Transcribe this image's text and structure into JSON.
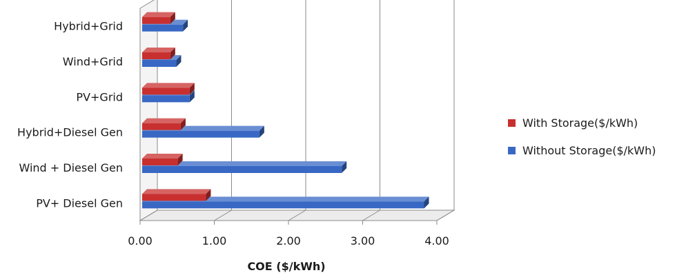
{
  "chart_data": {
    "type": "bar",
    "orientation": "horizontal",
    "categories": [
      "PV+ Diesel Gen",
      "Wind + Diesel Gen",
      "Hybrid+Diesel Gen",
      "PV+Grid",
      "Wind+Grid",
      "Hybrid+Grid"
    ],
    "series": [
      {
        "name": "With Storage($/kWh)",
        "values": [
          0.86,
          0.48,
          0.52,
          0.64,
          0.38,
          0.38
        ],
        "color": "#c8302f"
      },
      {
        "name": "Without Storage($/kWh)",
        "values": [
          3.8,
          2.69,
          1.58,
          0.64,
          0.46,
          0.55
        ],
        "color": "#3868c4"
      }
    ],
    "title": "",
    "xlabel": "COE ($/kWh)",
    "ylabel": "",
    "xlim": [
      0,
      4
    ],
    "xticks": [
      "0.00",
      "1.00",
      "2.00",
      "3.00",
      "4.00"
    ],
    "grid": true,
    "legend_position": "right",
    "style": "3d"
  }
}
